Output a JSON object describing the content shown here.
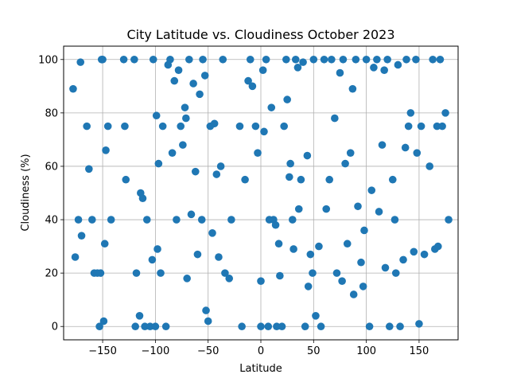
{
  "chart_data": {
    "type": "scatter",
    "title": "City Latitude vs. Cloudiness October 2023",
    "xlabel": "Latitude",
    "ylabel": "Cloudiness (%)",
    "xlim": [
      -187,
      187
    ],
    "ylim": [
      -5,
      105
    ],
    "xticks": [
      -150,
      -100,
      -50,
      0,
      50,
      100,
      150
    ],
    "yticks": [
      0,
      20,
      40,
      60,
      80,
      100
    ],
    "grid": true,
    "marker_color": "#1f77b4",
    "x": [
      -178,
      -176,
      -173,
      -171,
      -170,
      -165,
      -163,
      -160,
      -158,
      -155,
      -153,
      -152,
      -151,
      -150,
      -149,
      -148,
      -147,
      -145,
      -142,
      -130,
      -129,
      -128,
      -120,
      -119,
      -118,
      -115,
      -114,
      -112,
      -110,
      -108,
      -105,
      -103,
      -102,
      -100,
      -99,
      -98,
      -97,
      -95,
      -93,
      -90,
      -88,
      -86,
      -84,
      -82,
      -80,
      -78,
      -76,
      -74,
      -72,
      -71,
      -70,
      -68,
      -66,
      -64,
      -62,
      -60,
      -58,
      -56,
      -55,
      -53,
      -52,
      -50,
      -48,
      -46,
      -44,
      -42,
      -40,
      -38,
      -36,
      -34,
      -30,
      -28,
      -20,
      -18,
      -15,
      -12,
      -10,
      -8,
      -5,
      -3,
      0,
      0,
      2,
      3,
      5,
      7,
      8,
      10,
      12,
      14,
      15,
      17,
      18,
      20,
      22,
      24,
      25,
      27,
      28,
      30,
      31,
      33,
      35,
      36,
      38,
      40,
      42,
      44,
      45,
      47,
      49,
      50,
      52,
      55,
      57,
      60,
      62,
      65,
      67,
      70,
      72,
      75,
      77,
      78,
      80,
      82,
      85,
      87,
      88,
      90,
      92,
      95,
      97,
      98,
      100,
      103,
      105,
      107,
      110,
      112,
      115,
      117,
      118,
      120,
      122,
      125,
      127,
      128,
      130,
      132,
      135,
      137,
      138,
      140,
      142,
      145,
      147,
      148,
      150,
      152,
      155,
      160,
      163,
      165,
      167,
      168,
      170,
      172,
      175,
      178
    ],
    "y": [
      89,
      26,
      40,
      99,
      34,
      75,
      59,
      40,
      20,
      20,
      0,
      20,
      100,
      100,
      2,
      31,
      66,
      75,
      40,
      100,
      75,
      55,
      100,
      0,
      20,
      4,
      50,
      48,
      0,
      40,
      0,
      25,
      100,
      0,
      79,
      29,
      61,
      20,
      75,
      0,
      98,
      100,
      65,
      92,
      40,
      96,
      75,
      68,
      82,
      78,
      18,
      100,
      42,
      91,
      58,
      27,
      87,
      40,
      100,
      94,
      6,
      2,
      75,
      35,
      76,
      57,
      26,
      60,
      100,
      20,
      18,
      40,
      75,
      0,
      55,
      92,
      100,
      90,
      75,
      65,
      17,
      0,
      96,
      73,
      100,
      0,
      40,
      82,
      40,
      38,
      0,
      31,
      19,
      0,
      75,
      100,
      85,
      56,
      61,
      40,
      29,
      100,
      97,
      44,
      55,
      99,
      0,
      64,
      15,
      27,
      20,
      100,
      4,
      30,
      0,
      100,
      44,
      55,
      100,
      78,
      20,
      95,
      17,
      100,
      61,
      31,
      65,
      89,
      12,
      100,
      45,
      24,
      15,
      36,
      100,
      0,
      51,
      97,
      100,
      43,
      68,
      96,
      22,
      100,
      0,
      55,
      40,
      20,
      98,
      0,
      25,
      67,
      100,
      75,
      80,
      28,
      100,
      65,
      1,
      75,
      27,
      60,
      100,
      29,
      75,
      30,
      100,
      75,
      80,
      40
    ]
  }
}
